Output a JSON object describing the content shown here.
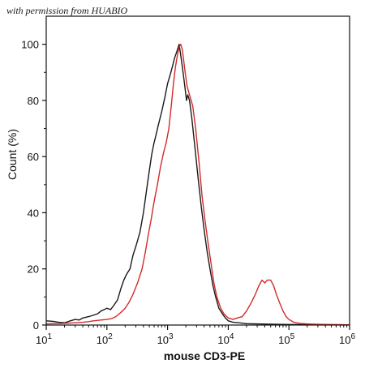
{
  "watermark": "with permission from HUABIO",
  "chart_data": {
    "type": "line",
    "title": "",
    "xlabel": "mouse CD3-PE",
    "ylabel": "Count (%)",
    "x_scale": "log",
    "xlim": [
      10,
      1000000
    ],
    "ylim": [
      0,
      110
    ],
    "x_ticks": [
      {
        "value": 10,
        "base": "10",
        "exp": "1"
      },
      {
        "value": 100,
        "base": "10",
        "exp": "2"
      },
      {
        "value": 1000,
        "base": "10",
        "exp": "3"
      },
      {
        "value": 10000,
        "base": "10",
        "exp": "4"
      },
      {
        "value": 100000,
        "base": "10",
        "exp": "5"
      },
      {
        "value": 1000000,
        "base": "10",
        "exp": "6"
      }
    ],
    "y_ticks": [
      0,
      20,
      40,
      60,
      80,
      100
    ],
    "grid": false,
    "legend": "none",
    "series": [
      {
        "color": "#1a1a1a",
        "points": [
          [
            10,
            1.5
          ],
          [
            13,
            1.3
          ],
          [
            16,
            1
          ],
          [
            20,
            0.8
          ],
          [
            25,
            1.5
          ],
          [
            30,
            2
          ],
          [
            35,
            1.8
          ],
          [
            40,
            2.5
          ],
          [
            50,
            3
          ],
          [
            60,
            3.5
          ],
          [
            70,
            4
          ],
          [
            80,
            5
          ],
          [
            90,
            5.5
          ],
          [
            100,
            6
          ],
          [
            115,
            5.5
          ],
          [
            130,
            7
          ],
          [
            150,
            9
          ],
          [
            170,
            13
          ],
          [
            190,
            16
          ],
          [
            210,
            18
          ],
          [
            240,
            20
          ],
          [
            270,
            25
          ],
          [
            300,
            28
          ],
          [
            350,
            33
          ],
          [
            400,
            40
          ],
          [
            450,
            48
          ],
          [
            500,
            55
          ],
          [
            550,
            61
          ],
          [
            600,
            65
          ],
          [
            650,
            68
          ],
          [
            700,
            71
          ],
          [
            800,
            76
          ],
          [
            900,
            81
          ],
          [
            1000,
            86
          ],
          [
            1100,
            89
          ],
          [
            1200,
            92
          ],
          [
            1300,
            95
          ],
          [
            1400,
            97
          ],
          [
            1500,
            99
          ],
          [
            1550,
            100
          ],
          [
            1650,
            96
          ],
          [
            1750,
            92
          ],
          [
            1850,
            88
          ],
          [
            1950,
            84
          ],
          [
            2050,
            80
          ],
          [
            2150,
            82
          ],
          [
            2300,
            80
          ],
          [
            2500,
            74
          ],
          [
            2800,
            64
          ],
          [
            3200,
            52
          ],
          [
            3600,
            42
          ],
          [
            4000,
            34
          ],
          [
            4500,
            26
          ],
          [
            5000,
            20
          ],
          [
            5600,
            14
          ],
          [
            6200,
            10
          ],
          [
            7000,
            6
          ],
          [
            8000,
            4
          ],
          [
            9000,
            2.5
          ],
          [
            10000,
            1.5
          ],
          [
            12000,
            1
          ],
          [
            15000,
            0.8
          ],
          [
            20000,
            0.5
          ],
          [
            50000,
            0.3
          ],
          [
            100000,
            0.2
          ],
          [
            1000000,
            0.1
          ]
        ]
      },
      {
        "color": "#d42a2a",
        "points": [
          [
            10,
            0.4
          ],
          [
            20,
            0.6
          ],
          [
            30,
            0.8
          ],
          [
            40,
            1
          ],
          [
            50,
            1.2
          ],
          [
            60,
            1.5
          ],
          [
            80,
            1.8
          ],
          [
            100,
            2
          ],
          [
            120,
            2.3
          ],
          [
            140,
            3
          ],
          [
            160,
            4
          ],
          [
            180,
            5
          ],
          [
            200,
            6
          ],
          [
            230,
            8
          ],
          [
            270,
            11
          ],
          [
            320,
            15
          ],
          [
            380,
            20
          ],
          [
            430,
            26
          ],
          [
            480,
            32
          ],
          [
            540,
            38
          ],
          [
            600,
            44
          ],
          [
            680,
            50
          ],
          [
            760,
            56
          ],
          [
            850,
            61
          ],
          [
            950,
            65
          ],
          [
            1050,
            70
          ],
          [
            1150,
            78
          ],
          [
            1250,
            86
          ],
          [
            1350,
            92
          ],
          [
            1450,
            96
          ],
          [
            1550,
            99
          ],
          [
            1650,
            100
          ],
          [
            1750,
            98
          ],
          [
            1850,
            94
          ],
          [
            1950,
            90
          ],
          [
            2100,
            85
          ],
          [
            2300,
            82
          ],
          [
            2600,
            78
          ],
          [
            2900,
            70
          ],
          [
            3300,
            58
          ],
          [
            3700,
            46
          ],
          [
            4100,
            38
          ],
          [
            4600,
            30
          ],
          [
            5200,
            22
          ],
          [
            5800,
            15
          ],
          [
            6500,
            10
          ],
          [
            7500,
            6
          ],
          [
            8500,
            4
          ],
          [
            10000,
            2.5
          ],
          [
            12000,
            2
          ],
          [
            14000,
            2.5
          ],
          [
            17000,
            3
          ],
          [
            20000,
            5
          ],
          [
            24000,
            8
          ],
          [
            28000,
            11
          ],
          [
            32000,
            14
          ],
          [
            36000,
            16
          ],
          [
            40000,
            15
          ],
          [
            44000,
            16
          ],
          [
            50000,
            16
          ],
          [
            56000,
            14
          ],
          [
            62000,
            11
          ],
          [
            70000,
            8
          ],
          [
            80000,
            5
          ],
          [
            90000,
            3
          ],
          [
            100000,
            2
          ],
          [
            120000,
            1
          ],
          [
            150000,
            0.6
          ],
          [
            200000,
            0.4
          ],
          [
            400000,
            0.2
          ],
          [
            1000000,
            0.1
          ]
        ]
      }
    ]
  }
}
